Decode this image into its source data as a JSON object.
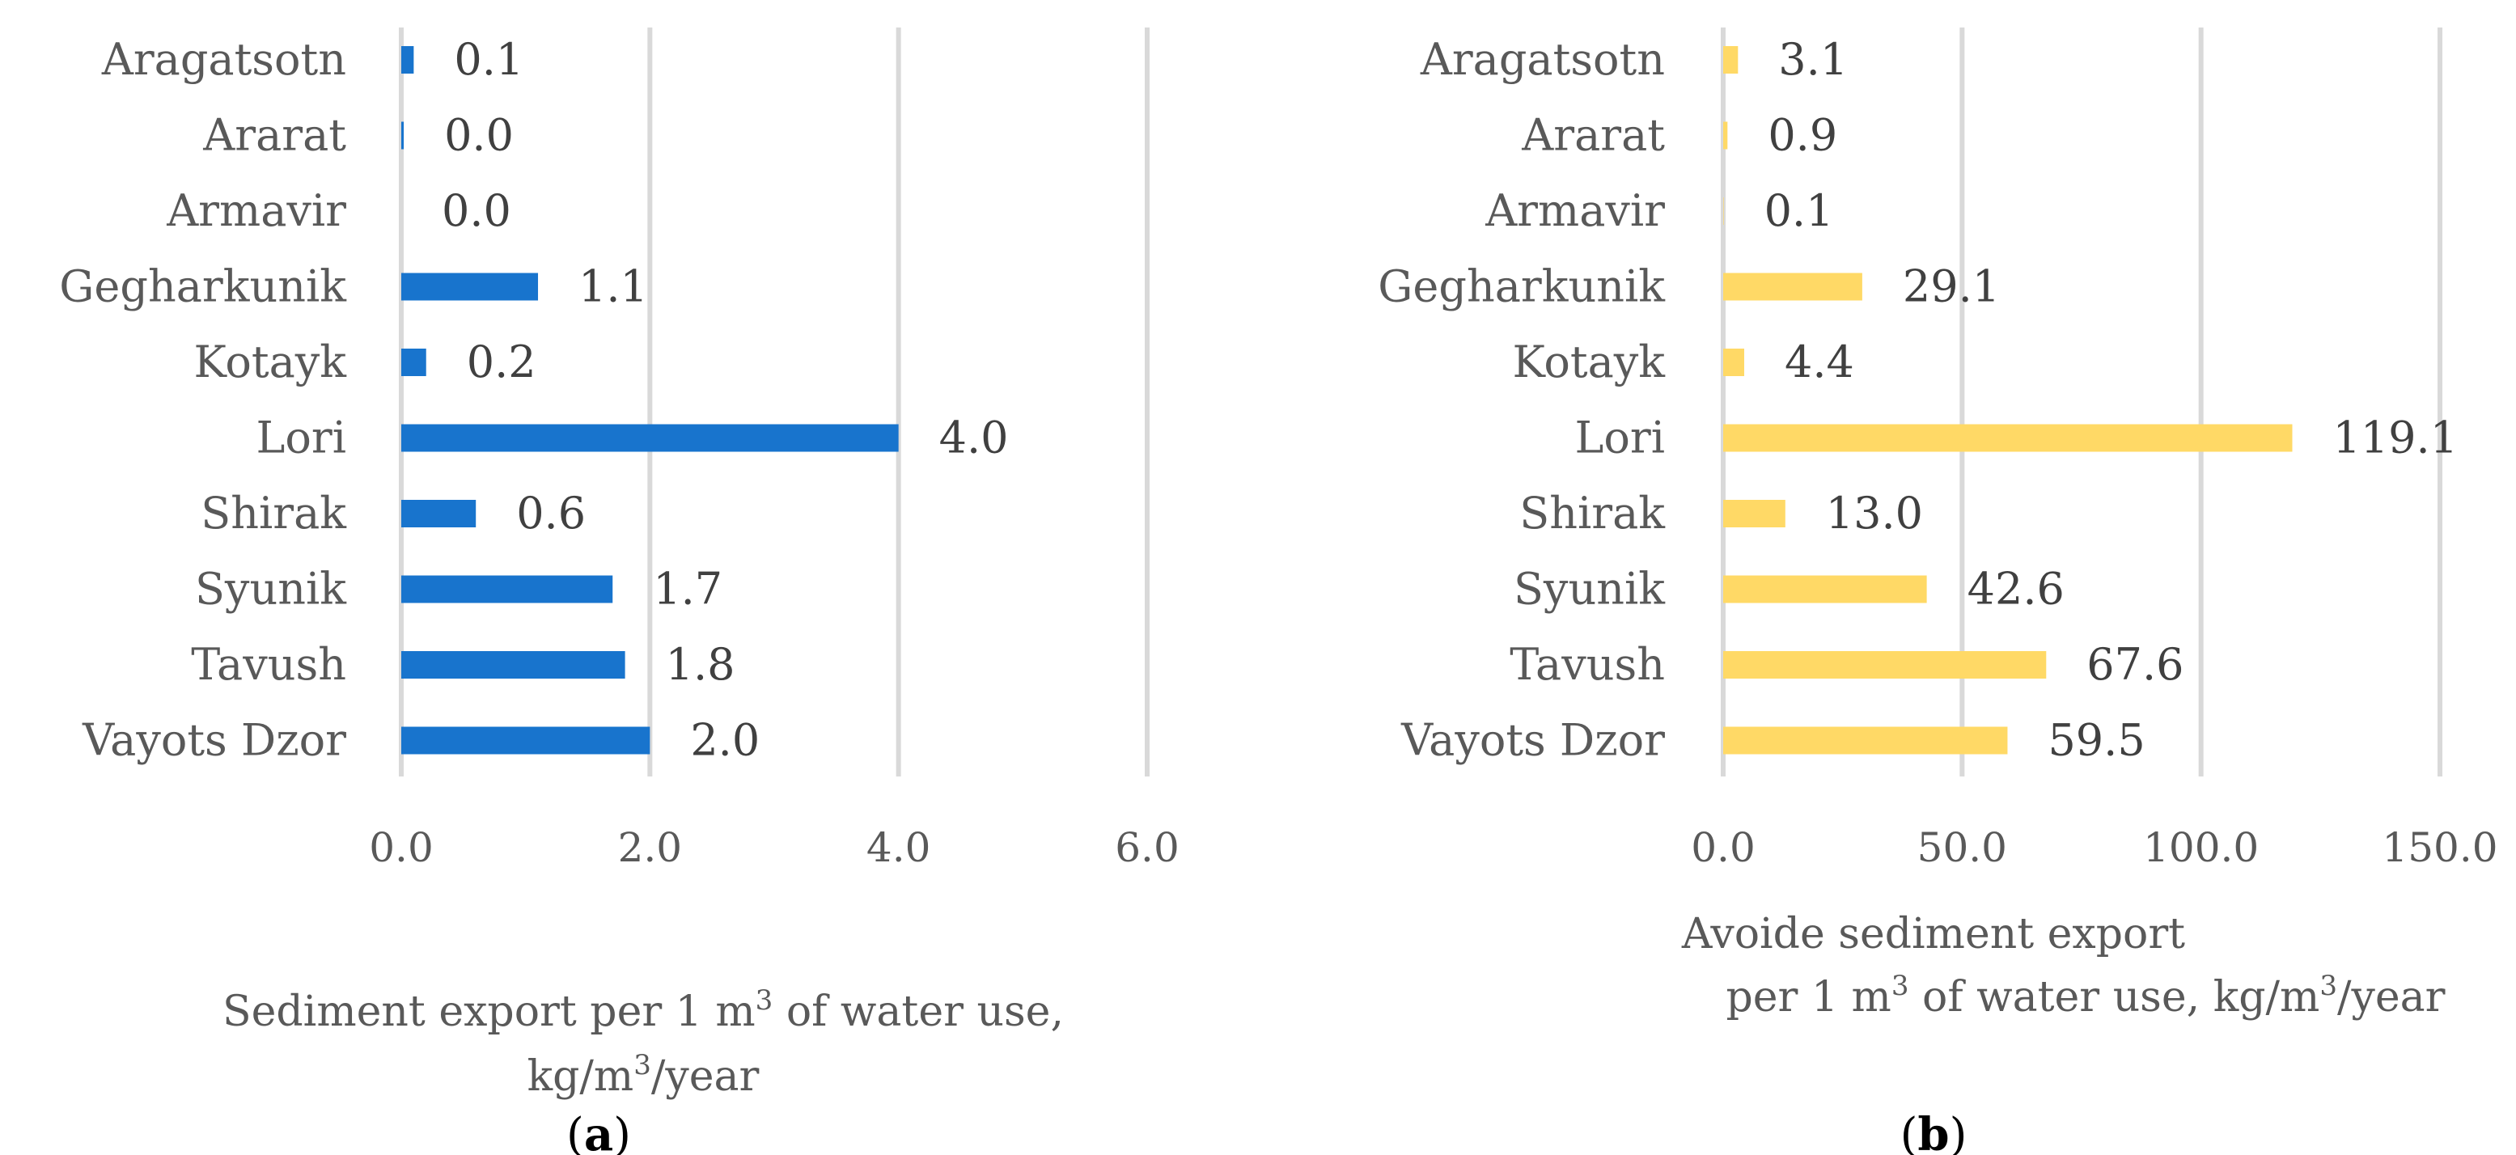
{
  "chart_data": [
    {
      "type": "bar",
      "orientation": "horizontal",
      "categories": [
        "Aragatsotn",
        "Ararat",
        "Armavir",
        "Gegharkunik",
        "Kotayk",
        "Lori",
        "Shirak",
        "Syunik",
        "Tavush",
        "Vayots Dzor"
      ],
      "values": [
        0.1,
        0.02,
        0.0,
        1.1,
        0.2,
        4.0,
        0.6,
        1.7,
        1.8,
        2.0
      ],
      "data_labels": [
        "0.1",
        "0.0",
        "0.0",
        "1.1",
        "0.2",
        "4.0",
        "0.6",
        "1.7",
        "1.8",
        "2.0"
      ],
      "xlabel_line1": "Sediment export per 1 m",
      "xlabel_sup1": "3",
      "xlabel_line1_end": " of water use,",
      "xlabel_line2": "kg/m",
      "xlabel_sup2": "3",
      "xlabel_line2_end": "/year",
      "xlim": [
        0,
        6
      ],
      "ticks": [
        "0.0",
        "2.0",
        "4.0",
        "6.0"
      ],
      "tick_values": [
        0,
        2,
        4,
        6
      ],
      "grid": true,
      "color": "#1874CD",
      "panel_open": "(",
      "panel": "a",
      "panel_close": ")"
    },
    {
      "type": "bar",
      "orientation": "horizontal",
      "categories": [
        "Aragatsotn",
        "Ararat",
        "Armavir",
        "Gegharkunik",
        "Kotayk",
        "Lori",
        "Shirak",
        "Syunik",
        "Tavush",
        "Vayots Dzor"
      ],
      "values": [
        3.1,
        0.9,
        0.1,
        29.1,
        4.4,
        119.1,
        13.0,
        42.6,
        67.6,
        59.5
      ],
      "data_labels": [
        "3.1",
        "0.9",
        "0.1",
        "29.1",
        "4.4",
        "119.1",
        "13.0",
        "42.6",
        "67.6",
        "59.5"
      ],
      "xlabel_line1": "Avoide sediment export",
      "xlabel_line2": "per 1 m",
      "xlabel_sup2": "3",
      "xlabel_line2_mid": " of water use, kg/m",
      "xlabel_sup3": "3",
      "xlabel_line2_end": "/year",
      "xlim": [
        0,
        150
      ],
      "ticks": [
        "0.0",
        "50.0",
        "100.0",
        "150.0"
      ],
      "tick_values": [
        0,
        50,
        100,
        150
      ],
      "grid": true,
      "color": "#FFD966",
      "panel_open": "(",
      "panel": "b",
      "panel_close": ")"
    }
  ]
}
